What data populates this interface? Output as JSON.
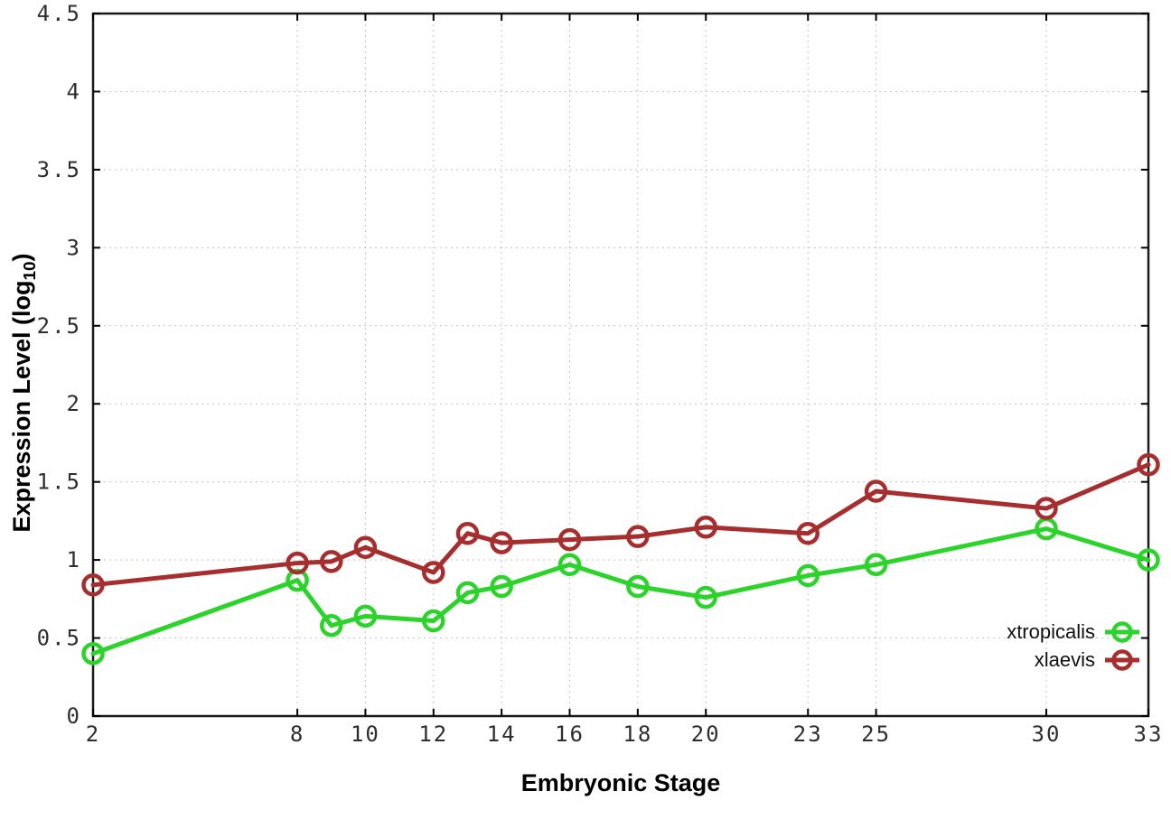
{
  "chart_data": {
    "type": "line",
    "title": "",
    "xlabel": "Embryonic Stage",
    "ylabel": "Expression Level (log10)",
    "ylabel_parts": {
      "prefix": "Expression Level (log",
      "sub": "10",
      "suffix": ")"
    },
    "x": [
      2,
      8,
      9,
      10,
      12,
      13,
      14,
      16,
      18,
      20,
      23,
      25,
      30,
      33
    ],
    "series": [
      {
        "name": "xtropicalis",
        "color": "#2bd32b",
        "values": [
          0.4,
          0.87,
          0.58,
          0.64,
          0.61,
          0.79,
          0.83,
          0.97,
          0.83,
          0.76,
          0.9,
          0.97,
          1.2,
          1.0
        ]
      },
      {
        "name": "xlaevis",
        "color": "#a62e2e",
        "values": [
          0.84,
          0.98,
          0.99,
          1.08,
          0.92,
          1.17,
          1.11,
          1.13,
          1.15,
          1.21,
          1.17,
          1.44,
          1.33,
          1.61
        ]
      }
    ],
    "xlim": [
      2,
      33
    ],
    "ylim": [
      0,
      4.5
    ],
    "xticks": {
      "values": [
        2,
        8,
        10,
        12,
        14,
        16,
        18,
        20,
        23,
        25,
        30,
        33
      ],
      "labels": [
        "2",
        "8",
        "10",
        "12",
        "14",
        "16",
        "18",
        "20",
        "23",
        "25",
        "30",
        "33"
      ]
    },
    "yticks": {
      "values": [
        0,
        0.5,
        1,
        1.5,
        2,
        2.5,
        3,
        3.5,
        4,
        4.5
      ],
      "labels": [
        "0",
        "0.5",
        "1",
        "1.5",
        "2",
        "2.5",
        "3",
        "3.5",
        "4",
        "4.5"
      ]
    },
    "grid": true,
    "legend_position": "bottom-right",
    "legend": [
      "xtropicalis",
      "xlaevis"
    ]
  },
  "styles": {
    "background": "#ffffff",
    "border_color": "#1a1a1a",
    "grid_color": "#c4c4c4",
    "tick_color": "#000000",
    "tick_label_color": "#2e2e2e",
    "marker_style": "open-circle"
  }
}
